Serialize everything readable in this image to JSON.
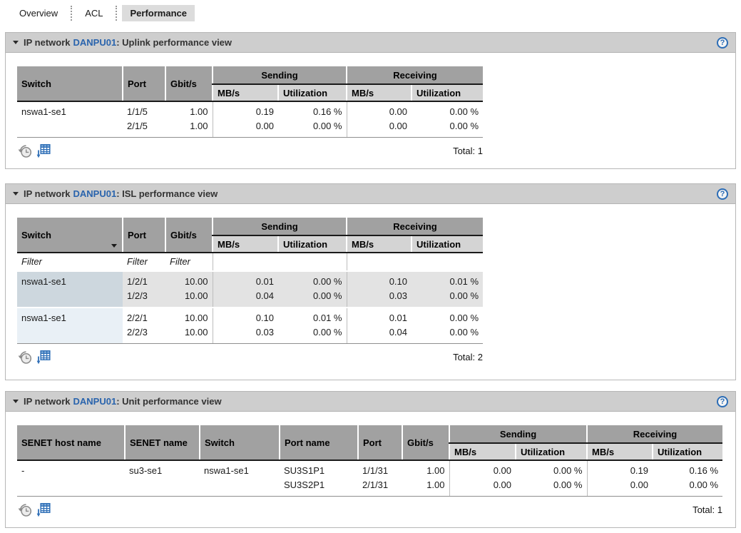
{
  "tab_bar": {
    "tabs": [
      {
        "label": "Overview",
        "active": false
      },
      {
        "label": "ACL",
        "active": false
      },
      {
        "label": "Performance",
        "active": true
      }
    ]
  },
  "icons": {
    "help_glyph": "?"
  },
  "colors": {
    "link_blue": "#2a64ad",
    "icon_blue": "#2c6db6",
    "header_gray": "#a1a1a1",
    "subheader_gray": "#d4d4d4",
    "panel_header_bg": "#cecece",
    "stripe_gray": "#e3e3e3",
    "stripe_switch_blue": "#cdd7de",
    "switch_tint_blue": "#e9f0f6"
  },
  "panels": [
    {
      "title": {
        "prefix": "IP network",
        "link": "DANPU01",
        "suffix": ": Uplink performance view"
      },
      "total": "Total: 1",
      "table": {
        "head": {
          "switch": "Switch",
          "port": "Port",
          "gbit": "Gbit/s",
          "sending": "Sending",
          "receiving": "Receiving",
          "mbs": "MB/s",
          "util": "Utilization"
        },
        "rows": [
          {
            "cls": "last",
            "cells": [
              {
                "cls": "c-text",
                "name": "switch-cell",
                "lines": [
                  "nswa1-se1"
                ]
              },
              {
                "cls": "c-text",
                "name": "port-cell",
                "lines": [
                  "1/1/5",
                  "2/1/5"
                ]
              },
              {
                "cls": "c-num",
                "name": "gbits-cell",
                "lines": [
                  "1.00",
                  "1.00"
                ]
              },
              {
                "cls": "c-num g-start",
                "name": "sending-mbs-cell",
                "lines": [
                  "0.19",
                  "0.00"
                ]
              },
              {
                "cls": "c-num",
                "name": "sending-utilization-cell",
                "lines": [
                  "0.16 %",
                  "0.00 %"
                ]
              },
              {
                "cls": "c-num g-start",
                "name": "receiving-mbs-cell",
                "lines": [
                  "0.00",
                  "0.00"
                ]
              },
              {
                "cls": "c-num",
                "name": "receiving-utilization-cell",
                "lines": [
                  "0.00 %",
                  "0.00 %"
                ]
              }
            ]
          }
        ]
      }
    },
    {
      "title": {
        "prefix": "IP network",
        "link": "DANPU01",
        "suffix": ": ISL performance view"
      },
      "total": "Total: 2",
      "filter_placeholder": "Filter",
      "table": {
        "head": {
          "switch": "Switch",
          "port": "Port",
          "gbit": "Gbit/s",
          "sending": "Sending",
          "receiving": "Receiving",
          "mbs": "MB/s",
          "util": "Utilization"
        },
        "rows": [
          {
            "cls": "filter-row",
            "cells": [
              {
                "cls": "c-filter",
                "name": "switch-filter-input",
                "interactable": true,
                "lines": [
                  "Filter"
                ]
              },
              {
                "cls": "c-filter",
                "name": "port-filter-input",
                "interactable": true,
                "lines": [
                  "Filter"
                ]
              },
              {
                "cls": "c-filter",
                "name": "gbits-filter-input",
                "interactable": true,
                "lines": [
                  "Filter"
                ]
              },
              {
                "cls": "g-start",
                "name": "sending-mbs-filter-spacer",
                "lines": []
              },
              {
                "cls": "",
                "name": "sending-utilization-filter-spacer",
                "lines": []
              },
              {
                "cls": "g-start",
                "name": "receiving-mbs-filter-spacer",
                "lines": []
              },
              {
                "cls": "",
                "name": "receiving-utilization-filter-spacer",
                "lines": []
              }
            ]
          },
          {
            "cls": "striped",
            "cells": [
              {
                "cls": "c-text c-switch",
                "name": "switch-cell",
                "lines": [
                  "nswa1-se1"
                ]
              },
              {
                "cls": "c-text",
                "name": "port-cell",
                "lines": [
                  "1/2/1",
                  "1/2/3"
                ]
              },
              {
                "cls": "c-num",
                "name": "gbits-cell",
                "lines": [
                  "10.00",
                  "10.00"
                ]
              },
              {
                "cls": "c-num g-start",
                "name": "sending-mbs-cell",
                "lines": [
                  "0.01",
                  "0.04"
                ]
              },
              {
                "cls": "c-num",
                "name": "sending-utilization-cell",
                "lines": [
                  "0.00 %",
                  "0.00 %"
                ]
              },
              {
                "cls": "c-num g-start",
                "name": "receiving-mbs-cell",
                "lines": [
                  "0.10",
                  "0.03"
                ]
              },
              {
                "cls": "c-num",
                "name": "receiving-utilization-cell",
                "lines": [
                  "0.01 %",
                  "0.00 %"
                ]
              }
            ]
          },
          {
            "cls": "plain last",
            "cells": [
              {
                "cls": "c-text c-switch",
                "name": "switch-cell",
                "lines": [
                  "nswa1-se1"
                ]
              },
              {
                "cls": "c-text",
                "name": "port-cell",
                "lines": [
                  "2/2/1",
                  "2/2/3"
                ]
              },
              {
                "cls": "c-num",
                "name": "gbits-cell",
                "lines": [
                  "10.00",
                  "10.00"
                ]
              },
              {
                "cls": "c-num g-start",
                "name": "sending-mbs-cell",
                "lines": [
                  "0.10",
                  "0.03"
                ]
              },
              {
                "cls": "c-num",
                "name": "sending-utilization-cell",
                "lines": [
                  "0.01 %",
                  "0.00 %"
                ]
              },
              {
                "cls": "c-num g-start",
                "name": "receiving-mbs-cell",
                "lines": [
                  "0.01",
                  "0.04"
                ]
              },
              {
                "cls": "c-num",
                "name": "receiving-utilization-cell",
                "lines": [
                  "0.00 %",
                  "0.00 %"
                ]
              }
            ]
          }
        ]
      }
    },
    {
      "title": {
        "prefix": "IP network",
        "link": "DANPU01",
        "suffix": ": Unit performance view"
      },
      "total": "Total: 1",
      "table": {
        "head": {
          "host": "SENET host name",
          "senet": "SENET name",
          "switch": "Switch",
          "port_name": "Port name",
          "port": "Port",
          "gbit": "Gbit/s",
          "sending": "Sending",
          "receiving": "Receiving",
          "mbs": "MB/s",
          "util": "Utilization"
        },
        "rows": [
          {
            "cls": "last",
            "cells": [
              {
                "cls": "c-text",
                "name": "senet-host-name-cell",
                "lines": [
                  "-"
                ]
              },
              {
                "cls": "c-text",
                "name": "senet-name-cell",
                "lines": [
                  "su3-se1"
                ]
              },
              {
                "cls": "c-text",
                "name": "switch-cell",
                "lines": [
                  "nswa1-se1"
                ]
              },
              {
                "cls": "c-text",
                "name": "port-name-cell",
                "lines": [
                  "SU3S1P1",
                  "SU3S2P1"
                ]
              },
              {
                "cls": "c-text",
                "name": "port-cell",
                "lines": [
                  "1/1/31",
                  "2/1/31"
                ]
              },
              {
                "cls": "c-num",
                "name": "gbits-cell",
                "lines": [
                  "1.00",
                  "1.00"
                ]
              },
              {
                "cls": "c-num g-start",
                "name": "sending-mbs-cell",
                "lines": [
                  "0.00",
                  "0.00"
                ]
              },
              {
                "cls": "c-num",
                "name": "sending-utilization-cell",
                "lines": [
                  "0.00 %",
                  "0.00 %"
                ]
              },
              {
                "cls": "c-num g-start",
                "name": "receiving-mbs-cell",
                "lines": [
                  "0.19",
                  "0.00"
                ]
              },
              {
                "cls": "c-num",
                "name": "receiving-utilization-cell",
                "lines": [
                  "0.16 %",
                  "0.00 %"
                ]
              }
            ]
          }
        ]
      }
    }
  ]
}
